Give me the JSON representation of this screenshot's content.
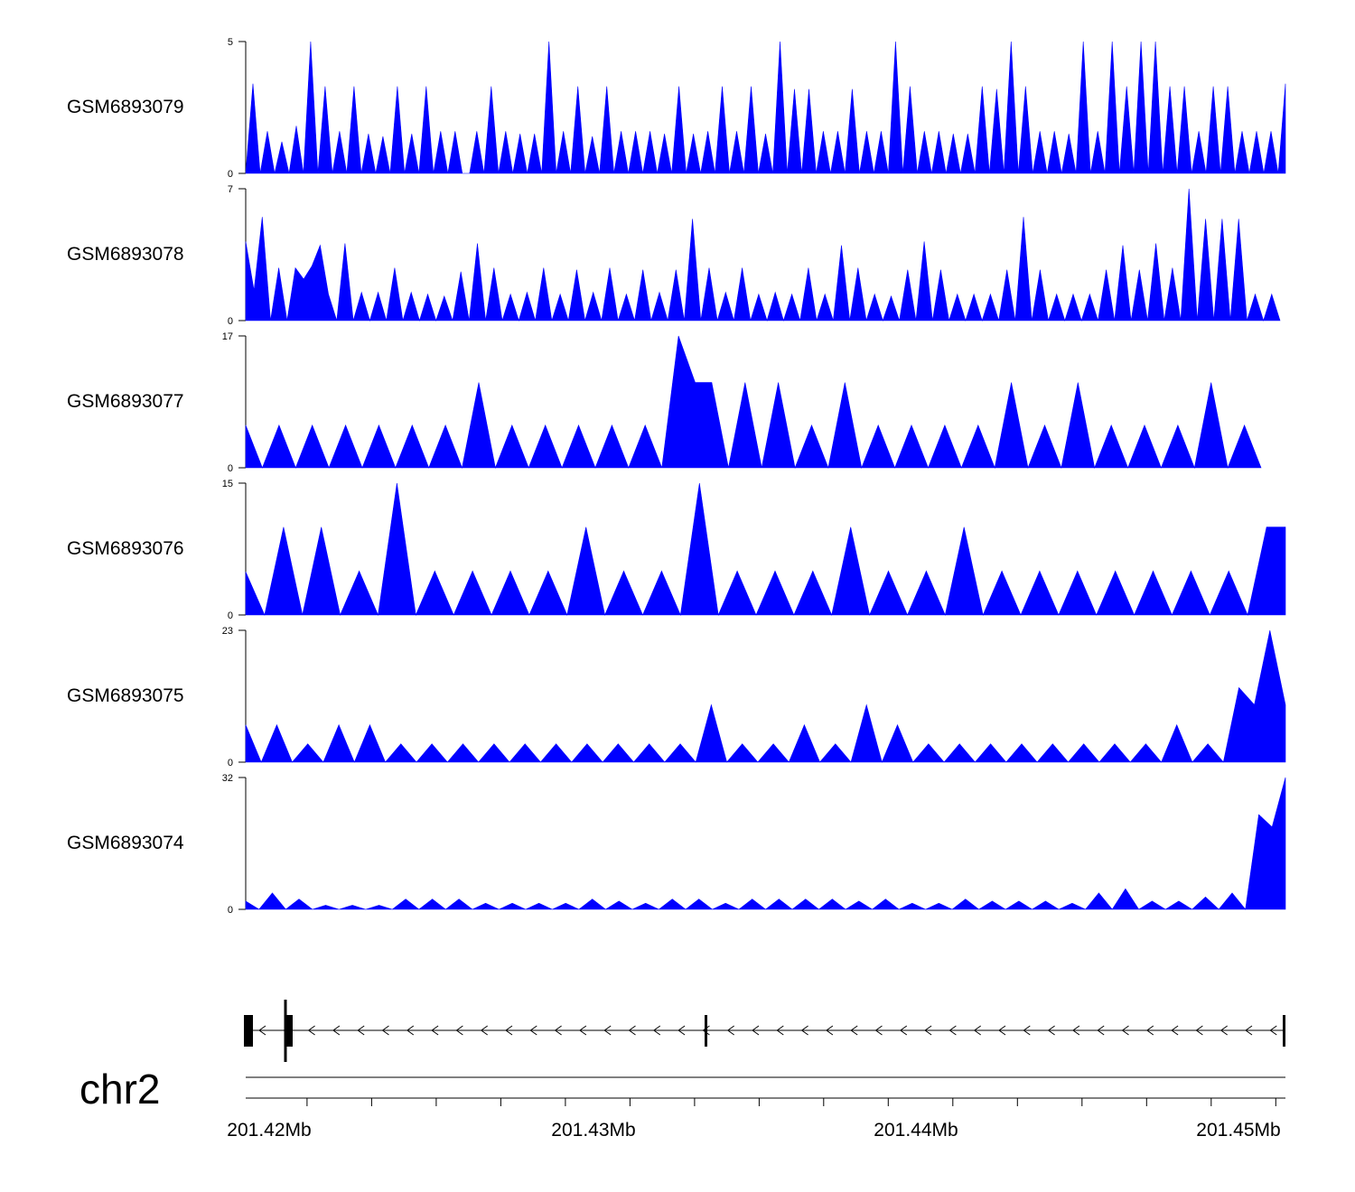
{
  "chart_data": {
    "type": "area",
    "title": "",
    "chromosome": "chr2",
    "x_range_mb": [
      201.4191,
      201.4513
    ],
    "x_ticks": [
      "201.42Mb",
      "201.43Mb",
      "201.44Mb",
      "201.45Mb"
    ],
    "x_tick_values": [
      201.42,
      201.43,
      201.44,
      201.45
    ],
    "fill_color": "#0000ff",
    "tracks": [
      {
        "name": "GSM6893079",
        "ymax": 5,
        "ymin_label": "0",
        "ymax_label": "5",
        "values": [
          0,
          3.4,
          0,
          1.6,
          0,
          1.2,
          0,
          1.8,
          0,
          5,
          0,
          3.3,
          0,
          1.6,
          0,
          3.3,
          0,
          1.5,
          0,
          1.4,
          0,
          3.3,
          0,
          1.5,
          0,
          3.3,
          0,
          1.6,
          0,
          1.6,
          0,
          0,
          1.6,
          0,
          3.3,
          0,
          1.6,
          0,
          1.5,
          0,
          1.5,
          0,
          5,
          0,
          1.6,
          0,
          3.3,
          0,
          1.4,
          0,
          3.3,
          0,
          1.6,
          0,
          1.6,
          0,
          1.6,
          0,
          1.5,
          0,
          3.3,
          0,
          1.5,
          0,
          1.6,
          0,
          3.3,
          0,
          1.6,
          0,
          3.3,
          0,
          1.5,
          0,
          5,
          0,
          3.2,
          0,
          3.2,
          0,
          1.6,
          0,
          1.6,
          0,
          3.2,
          0,
          1.6,
          0,
          1.6,
          0,
          5,
          0,
          3.3,
          0,
          1.6,
          0,
          1.6,
          0,
          1.5,
          0,
          1.5,
          0,
          3.3,
          0,
          3.2,
          0,
          5,
          0,
          3.3,
          0,
          1.6,
          0,
          1.6,
          0,
          1.5,
          0,
          5,
          0,
          1.6,
          0,
          5,
          0,
          3.3,
          0,
          5,
          0,
          5,
          0,
          3.3,
          0,
          3.3,
          0,
          1.6,
          0,
          3.3,
          0,
          3.3,
          0,
          1.6,
          0,
          1.6,
          0,
          1.6,
          0,
          3.4
        ]
      },
      {
        "name": "GSM6893078",
        "ymax": 7,
        "ymin_label": "0",
        "ymax_label": "7",
        "values": [
          4.2,
          1.6,
          5.5,
          0,
          2.8,
          0,
          2.8,
          2.2,
          2.9,
          4,
          1.4,
          0,
          4.1,
          0,
          1.5,
          0,
          1.5,
          0,
          2.8,
          0,
          1.5,
          0,
          1.4,
          0,
          1.3,
          0,
          2.6,
          0,
          4.1,
          0,
          2.8,
          0,
          1.4,
          0,
          1.5,
          0,
          2.8,
          0,
          1.4,
          0,
          2.7,
          0,
          1.5,
          0,
          2.8,
          0,
          1.4,
          0,
          2.7,
          0,
          1.5,
          0,
          2.7,
          0,
          5.4,
          0,
          2.8,
          0,
          1.5,
          0,
          2.8,
          0,
          1.4,
          0,
          1.5,
          0,
          1.4,
          0,
          2.8,
          0,
          1.4,
          0,
          4,
          0,
          2.8,
          0,
          1.4,
          0,
          1.3,
          0,
          2.7,
          0,
          4.2,
          0,
          2.7,
          0,
          1.4,
          0,
          1.4,
          0,
          1.4,
          0,
          2.7,
          0,
          5.5,
          0,
          2.7,
          0,
          1.4,
          0,
          1.4,
          0,
          1.4,
          0,
          2.7,
          0,
          4,
          0,
          2.7,
          0,
          4.1,
          0,
          2.8,
          0,
          7,
          0,
          5.4,
          0,
          5.4,
          0,
          5.4,
          0,
          1.4,
          0,
          1.4,
          0
        ]
      },
      {
        "name": "GSM6893077",
        "ymax": 17,
        "ymin_label": "0",
        "ymax_label": "17",
        "values": [
          5.5,
          0,
          5.5,
          0,
          5.5,
          0,
          5.5,
          0,
          5.5,
          0,
          5.5,
          0,
          5.5,
          0,
          11,
          0,
          5.5,
          0,
          5.5,
          0,
          5.5,
          0,
          5.5,
          0,
          5.5,
          0,
          17,
          11,
          11,
          0,
          11,
          0,
          11,
          0,
          5.5,
          0,
          11,
          0,
          5.5,
          0,
          5.5,
          0,
          5.5,
          0,
          5.5,
          0,
          11,
          0,
          5.5,
          0,
          11,
          0,
          5.5,
          0,
          5.5,
          0,
          5.5,
          0,
          11,
          0,
          5.5,
          0
        ]
      },
      {
        "name": "GSM6893076",
        "ymax": 15,
        "ymin_label": "0",
        "ymax_label": "15",
        "values": [
          4.9,
          0,
          10,
          0,
          10,
          0,
          5,
          0,
          15,
          0,
          5,
          0,
          5,
          0,
          5,
          0,
          5,
          0,
          10,
          0,
          5,
          0,
          5,
          0,
          15,
          0,
          5,
          0,
          5,
          0,
          5,
          0,
          10,
          0,
          5,
          0,
          5,
          0,
          10,
          0,
          5,
          0,
          5,
          0,
          5,
          0,
          5,
          0,
          5,
          0,
          5,
          0,
          5,
          0,
          10,
          10
        ]
      },
      {
        "name": "GSM6893075",
        "ymax": 23,
        "ymin_label": "0",
        "ymax_label": "23",
        "values": [
          6.5,
          0,
          6.5,
          0,
          3.2,
          0,
          6.5,
          0,
          6.5,
          0,
          3.2,
          0,
          3.2,
          0,
          3.2,
          0,
          3.2,
          0,
          3.2,
          0,
          3.2,
          0,
          3.2,
          0,
          3.2,
          0,
          3.2,
          0,
          3.2,
          0,
          10,
          0,
          3.2,
          0,
          3.2,
          0,
          6.5,
          0,
          3.2,
          0,
          10,
          0,
          6.5,
          0,
          3.2,
          0,
          3.2,
          0,
          3.2,
          0,
          3.2,
          0,
          3.2,
          0,
          3.2,
          0,
          3.2,
          0,
          3.2,
          0,
          6.5,
          0,
          3.2,
          0,
          13,
          10,
          23,
          10
        ]
      },
      {
        "name": "GSM6893074",
        "ymax": 32,
        "ymin_label": "0",
        "ymax_label": "32",
        "values": [
          2,
          0,
          4,
          0,
          2.5,
          0,
          1,
          0,
          1,
          0,
          1,
          0,
          2.5,
          0,
          2.5,
          0,
          2.5,
          0,
          1.5,
          0,
          1.5,
          0,
          1.5,
          0,
          1.5,
          0,
          2.5,
          0,
          2,
          0,
          1.5,
          0,
          2.5,
          0,
          2.5,
          0,
          1.5,
          0,
          2.5,
          0,
          2.5,
          0,
          2.5,
          0,
          2.5,
          0,
          2,
          0,
          2.5,
          0,
          1.5,
          0,
          1.5,
          0,
          2.5,
          0,
          2,
          0,
          2,
          0,
          2,
          0,
          1.5,
          0,
          4,
          0,
          5,
          0,
          2,
          0,
          2,
          0,
          3,
          0,
          4,
          0,
          23,
          20,
          32
        ]
      }
    ],
    "gene_track": {
      "strand": "-",
      "exon_fraction_positions": [
        0.0,
        0.037,
        0.444,
        1.0
      ]
    }
  }
}
